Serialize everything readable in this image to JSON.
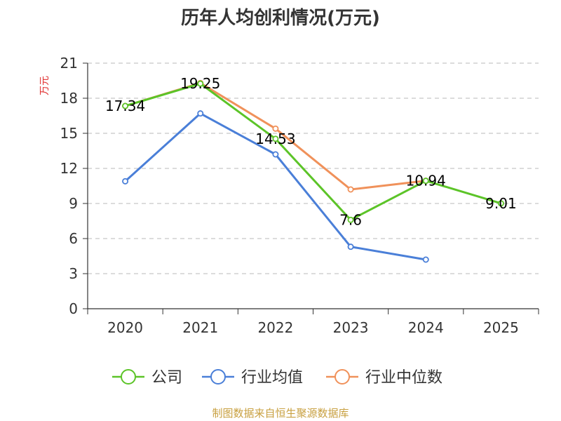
{
  "chart_data": {
    "type": "line",
    "title": "历年人均创利情况(万元)",
    "ylabel": "万元",
    "xlabel": "",
    "categories": [
      "2020",
      "2021",
      "2022",
      "2023",
      "2024",
      "2025"
    ],
    "ylim": [
      0,
      21
    ],
    "yticks": [
      "0",
      "3",
      "6",
      "9",
      "12",
      "15",
      "18",
      "21"
    ],
    "grid": true,
    "legend": "bottom",
    "series": [
      {
        "name": "公司",
        "color": "#5cc428",
        "values": [
          17.34,
          19.25,
          14.53,
          7.6,
          10.94,
          9.01
        ]
      },
      {
        "name": "行业均值",
        "color": "#4a7fd8",
        "values": [
          10.9,
          16.7,
          13.2,
          5.3,
          4.2,
          null
        ]
      },
      {
        "name": "行业中位数",
        "color": "#f0915a",
        "values": [
          17.34,
          19.3,
          15.4,
          10.2,
          10.94,
          null
        ]
      }
    ],
    "data_labels": [
      "17.34",
      "19.25",
      "14.53",
      "7.6",
      "10.94",
      "9.01"
    ],
    "source": "制图数据来自恒生聚源数据库",
    "ylabel_color": "#e03030",
    "source_color": "#c8a040"
  }
}
